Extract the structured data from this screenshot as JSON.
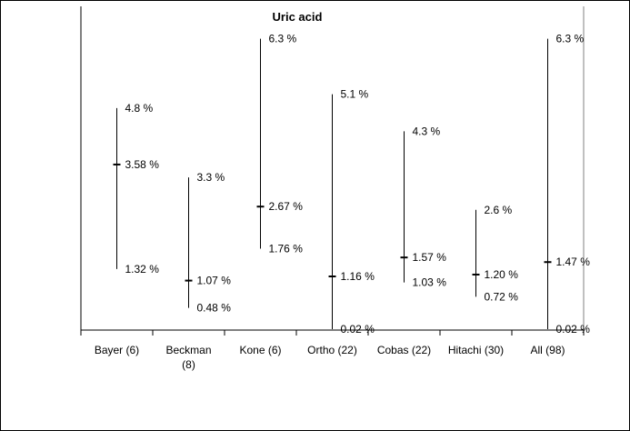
{
  "chart_data": {
    "type": "range",
    "title": "Uric acid",
    "categories": [
      {
        "label_lines": [
          "Bayer (6)"
        ]
      },
      {
        "label_lines": [
          "Beckman",
          "(8)"
        ]
      },
      {
        "label_lines": [
          "Kone (6)"
        ]
      },
      {
        "label_lines": [
          "Ortho (22)"
        ]
      },
      {
        "label_lines": [
          "Cobas (22)"
        ]
      },
      {
        "label_lines": [
          "Hitachi (30)"
        ]
      },
      {
        "label_lines": [
          "All (98)"
        ]
      }
    ],
    "series": [
      {
        "max": 4.8,
        "mid": 3.58,
        "min": 1.32,
        "max_label": "4.8 %",
        "mid_label": "3.58 %",
        "min_label": "1.32 %"
      },
      {
        "max": 3.3,
        "mid": 1.07,
        "min": 0.48,
        "max_label": "3.3 %",
        "mid_label": "1.07 %",
        "min_label": "0.48 %"
      },
      {
        "max": 6.3,
        "mid": 2.67,
        "min": 1.76,
        "max_label": "6.3 %",
        "mid_label": "2.67 %",
        "min_label": "1.76 %"
      },
      {
        "max": 5.1,
        "mid": 1.16,
        "min": 0.02,
        "max_label": "5.1 %",
        "mid_label": "1.16 %",
        "min_label": "0.02 %"
      },
      {
        "max": 4.3,
        "mid": 1.57,
        "min": 1.03,
        "max_label": "4.3 %",
        "mid_label": "1.57 %",
        "min_label": "1.03 %"
      },
      {
        "max": 2.6,
        "mid": 1.2,
        "min": 0.72,
        "max_label": "2.6 %",
        "mid_label": "1.20 %",
        "min_label": "0.72 %"
      },
      {
        "max": 6.3,
        "mid": 1.47,
        "min": 0.02,
        "max_label": "6.3 %",
        "mid_label": "1.47 %",
        "min_label": "0.02 %"
      }
    ],
    "ylim": [
      0,
      7
    ],
    "grid": false,
    "legend": "none",
    "colors": {
      "line": "#000000",
      "background": "#ffffff"
    }
  }
}
